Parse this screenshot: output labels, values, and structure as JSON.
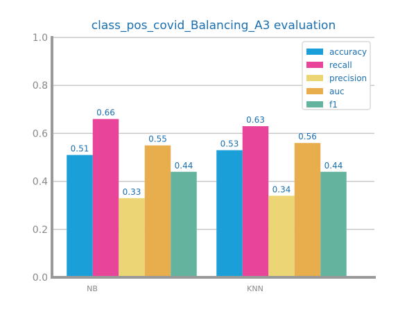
{
  "chart_data": {
    "type": "bar",
    "title": "class_pos_covid_Balancing_A3 evaluation",
    "categories": [
      "NB",
      "KNN"
    ],
    "series": [
      {
        "name": "accuracy",
        "values": [
          0.51,
          0.53
        ],
        "color": "#1a9fd9"
      },
      {
        "name": "recall",
        "values": [
          0.66,
          0.63
        ],
        "color": "#e8449a"
      },
      {
        "name": "precision",
        "values": [
          0.33,
          0.34
        ],
        "color": "#ecd574"
      },
      {
        "name": "auc",
        "values": [
          0.55,
          0.56
        ],
        "color": "#e8ae4e"
      },
      {
        "name": "f1",
        "values": [
          0.44,
          0.44
        ],
        "color": "#64b39e"
      }
    ],
    "data_labels": [
      [
        "0.51",
        "0.66",
        "0.33",
        "0.55",
        "0.44"
      ],
      [
        "0.53",
        "0.63",
        "0.34",
        "0.56",
        "0.44"
      ]
    ],
    "ylim": [
      0,
      1.0
    ],
    "yticks": [
      "0.0",
      "0.2",
      "0.4",
      "0.6",
      "0.8",
      "1.0"
    ],
    "grid": true,
    "legend_position": "top-right",
    "xlabel": "",
    "ylabel": ""
  }
}
